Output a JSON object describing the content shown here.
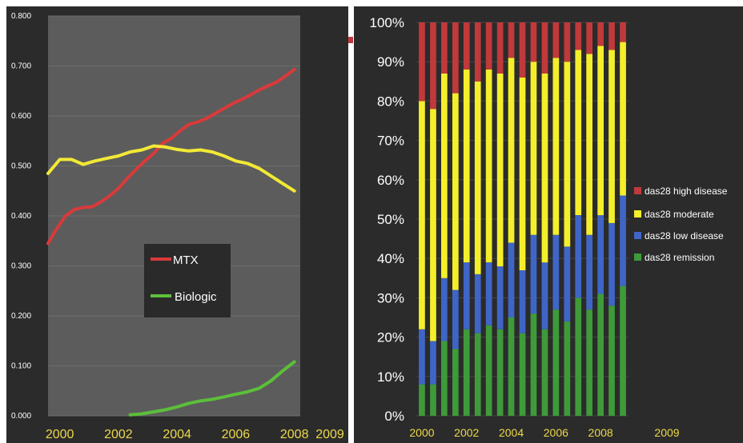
{
  "chart_data": [
    {
      "type": "line",
      "title": "",
      "xlabel": "",
      "ylabel": "",
      "ylim": [
        0,
        0.8
      ],
      "y_ticks": [
        "0.000",
        "0.100",
        "0.200",
        "0.300",
        "0.400",
        "0.500",
        "0.600",
        "0.700",
        "0.800"
      ],
      "x_ticks": [
        "2000",
        "2002",
        "2004",
        "2006",
        "2008",
        "2009"
      ],
      "grid": true,
      "legend_position": "center",
      "legend": [
        "MTX",
        "Biologic"
      ],
      "series": [
        {
          "name": "MTX",
          "color": "#d93a3a",
          "x": [
            1999.6,
            1999.9,
            2000.2,
            2000.5,
            2000.8,
            2001.1,
            2001.4,
            2001.7,
            2002.0,
            2002.3,
            2002.6,
            2002.9,
            2003.2,
            2003.5,
            2003.8,
            2004.1,
            2004.4,
            2004.7,
            2005.0,
            2005.3,
            2005.6,
            2005.9,
            2006.2,
            2006.5,
            2006.8,
            2007.1,
            2007.4,
            2007.7,
            2008.0
          ],
          "y": [
            0.345,
            0.375,
            0.4,
            0.413,
            0.417,
            0.418,
            0.428,
            0.44,
            0.455,
            0.475,
            0.493,
            0.51,
            0.525,
            0.545,
            0.555,
            0.57,
            0.583,
            0.588,
            0.595,
            0.605,
            0.615,
            0.625,
            0.633,
            0.642,
            0.652,
            0.66,
            0.668,
            0.68,
            0.693
          ]
        },
        {
          "name": "",
          "color": "#f2e935",
          "x": [
            1999.6,
            2000.0,
            2000.4,
            2000.8,
            2001.2,
            2001.6,
            2002.0,
            2002.4,
            2002.8,
            2003.2,
            2003.6,
            2004.0,
            2004.4,
            2004.8,
            2005.2,
            2005.6,
            2006.0,
            2006.4,
            2006.8,
            2007.2,
            2007.6,
            2008.0
          ],
          "y": [
            0.485,
            0.513,
            0.513,
            0.503,
            0.51,
            0.515,
            0.52,
            0.528,
            0.532,
            0.54,
            0.538,
            0.533,
            0.53,
            0.532,
            0.528,
            0.52,
            0.51,
            0.505,
            0.495,
            0.48,
            0.465,
            0.45
          ]
        },
        {
          "name": "Biologic",
          "color": "#5bbf3a",
          "x": [
            2002.4,
            2002.8,
            2003.2,
            2003.6,
            2004.0,
            2004.4,
            2004.8,
            2005.2,
            2005.6,
            2006.0,
            2006.4,
            2006.8,
            2007.2,
            2007.6,
            2008.0
          ],
          "y": [
            0.002,
            0.004,
            0.008,
            0.012,
            0.018,
            0.025,
            0.03,
            0.033,
            0.038,
            0.043,
            0.048,
            0.055,
            0.07,
            0.09,
            0.108
          ]
        }
      ]
    },
    {
      "type": "bar",
      "stacked": "percent",
      "title": "",
      "xlabel": "",
      "ylabel": "",
      "ylim": [
        0,
        100
      ],
      "y_ticks": [
        "0%",
        "10%",
        "20%",
        "30%",
        "40%",
        "50%",
        "60%",
        "70%",
        "80%",
        "90%",
        "100%"
      ],
      "x_ticks": [
        "2000",
        "2002",
        "2004",
        "2006",
        "2008",
        "2009"
      ],
      "legend_position": "right",
      "series": [
        {
          "name": "das28 high disease",
          "color": "#c0393b"
        },
        {
          "name": "das28 moderate",
          "color": "#f4ef2a"
        },
        {
          "name": "das28 low disease",
          "color": "#3f65c6"
        },
        {
          "name": "das28 remission",
          "color": "#3f9a3a"
        }
      ],
      "bars": [
        {
          "cum": [
            8,
            22,
            80
          ]
        },
        {
          "cum": [
            8,
            19,
            78
          ]
        },
        {
          "cum": [
            19,
            35,
            87
          ]
        },
        {
          "cum": [
            17,
            32,
            82
          ]
        },
        {
          "cum": [
            22,
            39,
            88
          ]
        },
        {
          "cum": [
            21,
            36,
            85
          ]
        },
        {
          "cum": [
            23,
            39,
            88
          ]
        },
        {
          "cum": [
            22,
            38,
            87
          ]
        },
        {
          "cum": [
            25,
            44,
            91
          ]
        },
        {
          "cum": [
            21,
            37,
            86
          ]
        },
        {
          "cum": [
            26,
            46,
            90
          ]
        },
        {
          "cum": [
            22,
            39,
            87
          ]
        },
        {
          "cum": [
            27,
            46,
            91
          ]
        },
        {
          "cum": [
            24,
            43,
            90
          ]
        },
        {
          "cum": [
            30,
            51,
            93
          ]
        },
        {
          "cum": [
            27,
            46,
            92
          ]
        },
        {
          "cum": [
            31,
            51,
            94
          ]
        },
        {
          "cum": [
            28,
            49,
            93
          ]
        },
        {
          "cum": [
            33,
            56,
            95
          ]
        }
      ]
    }
  ]
}
